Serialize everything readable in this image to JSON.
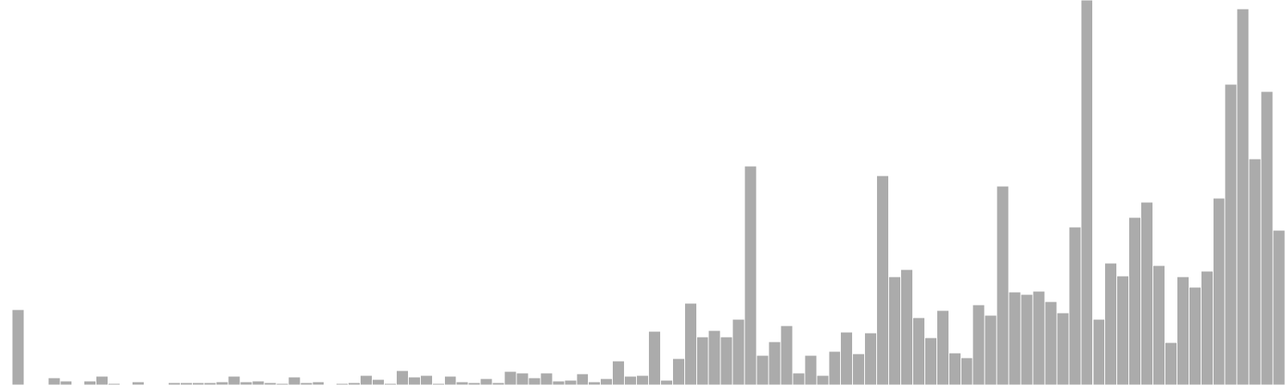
{
  "chart_data": {
    "type": "bar",
    "title": "",
    "xlabel": "",
    "ylabel": "",
    "grid": false,
    "ylim": [
      0,
      480
    ],
    "bar_color": "#ababab",
    "bar_edge_color": "#ffffff",
    "values": [
      0,
      94,
      1,
      1,
      9,
      5,
      1,
      5,
      11,
      2,
      1,
      4,
      1,
      0,
      3,
      3,
      3,
      3,
      4,
      11,
      4,
      5,
      3,
      2,
      10,
      3,
      4,
      0,
      2,
      3,
      12,
      7,
      2,
      18,
      10,
      12,
      2,
      11,
      4,
      3,
      8,
      3,
      17,
      15,
      9,
      15,
      5,
      6,
      14,
      4,
      8,
      30,
      11,
      12,
      67,
      6,
      33,
      102,
      60,
      68,
      60,
      82,
      273,
      37,
      54,
      74,
      15,
      37,
      12,
      42,
      66,
      39,
      65,
      261,
      135,
      144,
      84,
      59,
      93,
      40,
      34,
      100,
      87,
      248,
      116,
      113,
      117,
      104,
      90,
      197,
      480,
      82,
      152,
      136,
      209,
      228,
      149,
      53,
      135,
      122,
      142,
      233,
      375,
      469,
      282,
      366,
      193
    ]
  }
}
